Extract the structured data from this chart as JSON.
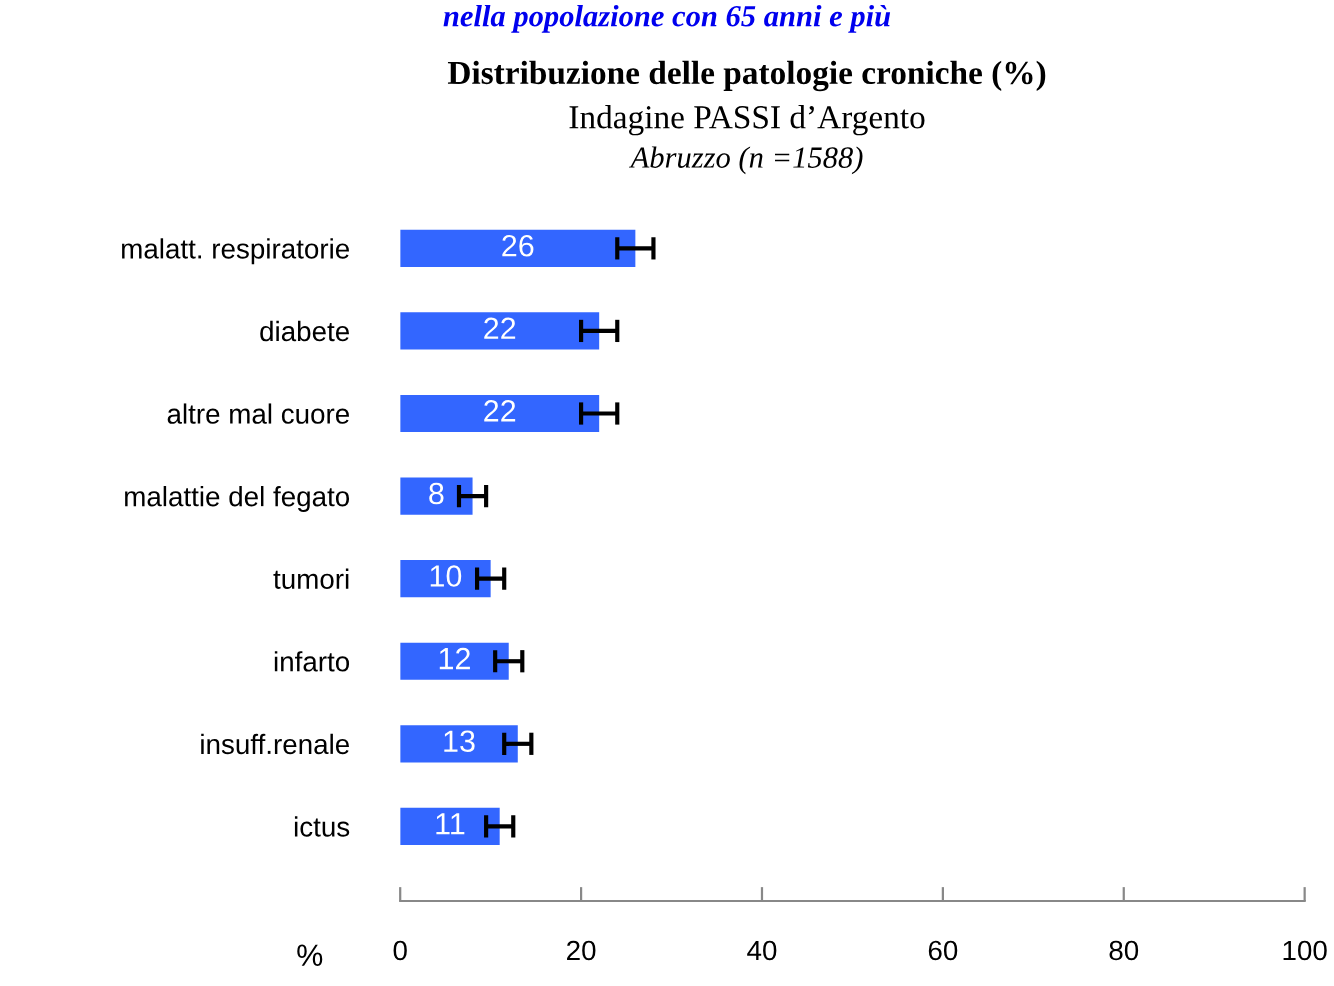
{
  "chart_data": {
    "type": "bar",
    "orientation": "horizontal",
    "title": "Distribuzione delle patologie croniche (%)",
    "subtitle": "Indagine PASSI d’Argento",
    "annotations": [
      "nella popolazione con 65 anni e più",
      "Abruzzo (n =1588)"
    ],
    "xlabel": "%",
    "categories": [
      "malatt. respiratorie",
      "diabete",
      "altre mal cuore",
      "malattie del fegato",
      "tumori",
      "infarto",
      "insuff.renale",
      "ictus"
    ],
    "values": [
      26,
      22,
      22,
      8,
      10,
      12,
      13,
      11
    ],
    "errors": [
      2,
      2,
      2,
      1.5,
      1.5,
      1.5,
      1.5,
      1.5
    ],
    "color": "#3366ff",
    "data_labels": true,
    "xlim": [
      0,
      100
    ],
    "xticks": [
      0,
      20,
      40,
      60,
      80,
      100
    ],
    "grid": false
  }
}
